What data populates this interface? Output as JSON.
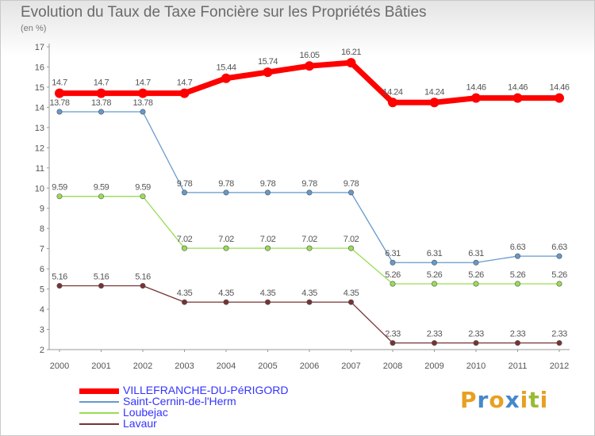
{
  "chart_data": {
    "type": "line",
    "title": "Evolution du Taux de Taxe Foncière sur les Propriétés Bâties",
    "ylabel": "(en %)",
    "xlabel": "",
    "ylim": [
      2,
      17
    ],
    "yticks": [
      2,
      3,
      4,
      5,
      6,
      7,
      8,
      9,
      10,
      11,
      12,
      13,
      14,
      15,
      16,
      17
    ],
    "categories": [
      "2000",
      "2001",
      "2002",
      "2003",
      "2004",
      "2005",
      "2006",
      "2007",
      "2008",
      "2009",
      "2010",
      "2011",
      "2012"
    ],
    "series": [
      {
        "name": "VILLEFRANCHE-DU-PéRIGORD",
        "color": "#ff0000",
        "values": [
          14.7,
          14.7,
          14.7,
          14.7,
          15.44,
          15.74,
          16.05,
          16.21,
          14.24,
          14.24,
          14.46,
          14.46,
          14.46
        ],
        "labels": [
          "14.7",
          "14.7",
          "14.7",
          "14.7",
          "15.44",
          "15.74",
          "16.05",
          "16.21",
          "14.24",
          "14.24",
          "14.46",
          "14.46",
          "14.46"
        ]
      },
      {
        "name": "Saint-Cernin-de-l'Herm",
        "color": "#6699cc",
        "values": [
          13.78,
          13.78,
          13.78,
          9.78,
          9.78,
          9.78,
          9.78,
          9.78,
          6.31,
          6.31,
          6.31,
          6.63,
          6.63
        ],
        "labels": [
          "13.78",
          "13.78",
          "13.78",
          "9.78",
          "9.78",
          "9.78",
          "9.78",
          "9.78",
          "6.31",
          "6.31",
          "6.31",
          "6.63",
          "6.63"
        ]
      },
      {
        "name": "Loubejac",
        "color": "#99dd55",
        "values": [
          9.59,
          9.59,
          9.59,
          7.02,
          7.02,
          7.02,
          7.02,
          7.02,
          5.26,
          5.26,
          5.26,
          5.26,
          5.26
        ],
        "labels": [
          "9.59",
          "9.59",
          "9.59",
          "7.02",
          "7.02",
          "7.02",
          "7.02",
          "7.02",
          "5.26",
          "5.26",
          "5.26",
          "5.26",
          "5.26"
        ]
      },
      {
        "name": "Lavaur",
        "color": "#773333",
        "values": [
          5.16,
          5.16,
          5.16,
          4.35,
          4.35,
          4.35,
          4.35,
          4.35,
          2.33,
          2.33,
          2.33,
          2.33,
          2.33
        ],
        "labels": [
          "5.16",
          "5.16",
          "5.16",
          "4.35",
          "4.35",
          "4.35",
          "4.35",
          "4.35",
          "2.33",
          "2.33",
          "2.33",
          "2.33",
          "2.33"
        ]
      }
    ],
    "grid": false,
    "legend": "bottom-left"
  },
  "legend_label_colors": [
    "#3333ff",
    "#3333ff",
    "#3333ff",
    "#3333ff"
  ],
  "brand": {
    "letters": [
      "P",
      "r",
      "o",
      "x",
      "i",
      "t",
      "i"
    ],
    "colors": [
      "#e8a020",
      "#4488cc",
      "#e8a020",
      "#4488cc",
      "#e8a020",
      "#99bb33",
      "#e8a020"
    ]
  }
}
